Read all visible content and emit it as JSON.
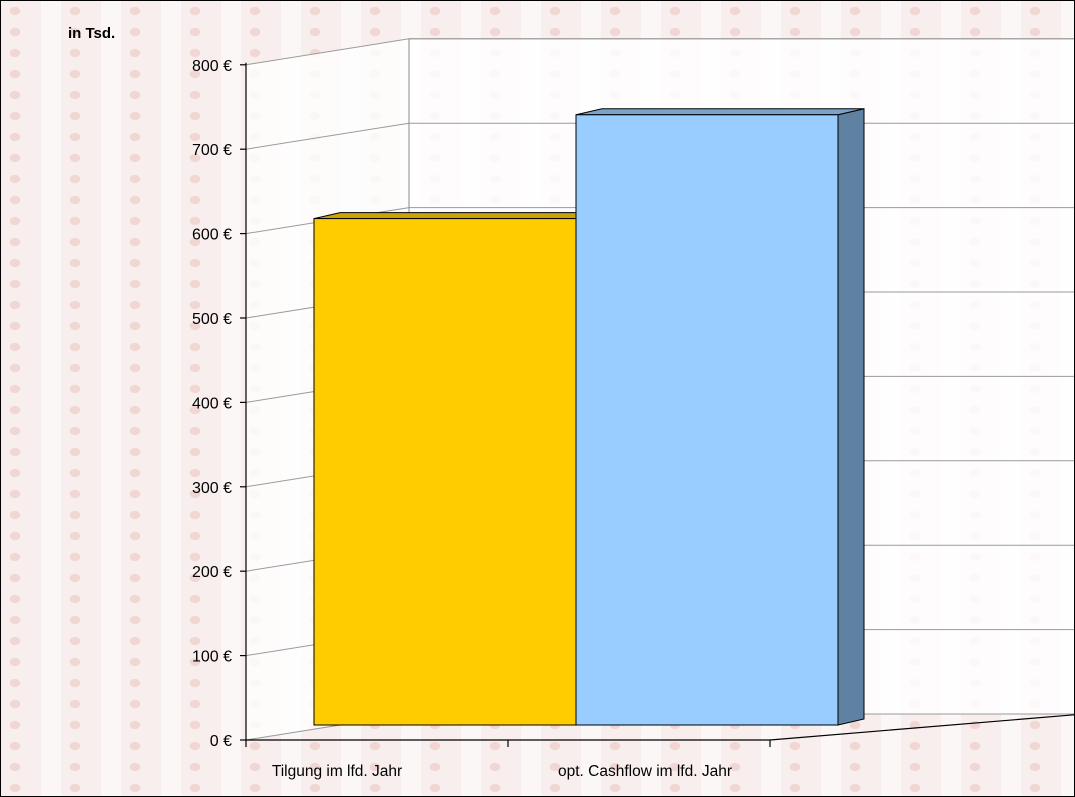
{
  "chart_data": {
    "type": "bar",
    "unit_label": "in Tsd.",
    "categories": [
      "Tilgung im lfd. Jahr",
      "opt. Cashflow im lfd. Jahr"
    ],
    "values": [
      600,
      723
    ],
    "colors": [
      "#FFCC00",
      "#99CCFF"
    ],
    "side_colors": [
      "#B38F00",
      "#5F81A2"
    ],
    "top_colors": [
      "#CCA300",
      "#7AA3CC"
    ],
    "ylim": [
      0,
      800
    ],
    "y_ticks": [
      {
        "value": 0,
        "label": "0 €"
      },
      {
        "value": 100,
        "label": "100 €"
      },
      {
        "value": 200,
        "label": "200 €"
      },
      {
        "value": 300,
        "label": "300 €"
      },
      {
        "value": 400,
        "label": "400 €"
      },
      {
        "value": 500,
        "label": "500 €"
      },
      {
        "value": 600,
        "label": "600 €"
      },
      {
        "value": 700,
        "label": "700 €"
      },
      {
        "value": 800,
        "label": "800 €"
      }
    ],
    "grid": true,
    "legend": "none",
    "style": "3d-bar"
  }
}
